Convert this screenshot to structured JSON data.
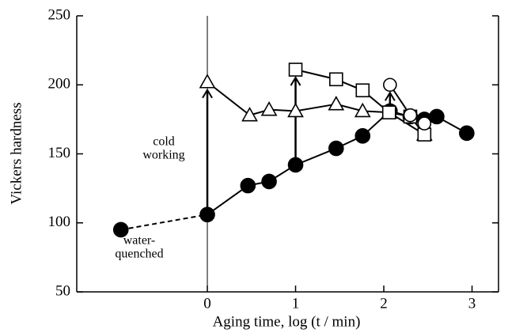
{
  "chart_data": {
    "type": "line",
    "xlabel": "Aging time, log (t / min)",
    "ylabel": "Vickers hardness",
    "xlim": [
      -1.48,
      3.3
    ],
    "ylim": [
      50,
      250
    ],
    "xticks": [
      0,
      1,
      2,
      3
    ],
    "yticks": [
      50,
      100,
      150,
      200,
      250
    ],
    "vlines": [
      0
    ],
    "series": [
      {
        "marker": "filled-circle",
        "color": "#000",
        "line_style": "dashed-first",
        "x": [
          -0.98,
          0,
          0.46,
          0.7,
          1.0,
          1.46,
          1.76,
          2.07,
          2.3,
          2.46,
          2.6,
          2.94
        ],
        "values": [
          95,
          106,
          127,
          130,
          142,
          154,
          163,
          181,
          177,
          175,
          177,
          165
        ]
      },
      {
        "marker": "triangle",
        "color": "#000",
        "line_style": "solid",
        "x": [
          0,
          0.48,
          0.7,
          1.0,
          1.46,
          1.76,
          2.06,
          2.46
        ],
        "values": [
          202,
          178,
          182,
          181,
          186,
          181,
          180,
          164
        ]
      },
      {
        "marker": "square",
        "color": "#000",
        "line_style": "solid",
        "x": [
          1.0,
          1.46,
          1.76,
          2.06,
          2.3,
          2.46
        ],
        "values": [
          211,
          204,
          196,
          180,
          177,
          164
        ]
      },
      {
        "marker": "open-circle",
        "color": "#000",
        "line_style": "solid",
        "x": [
          2.07,
          2.3,
          2.46
        ],
        "values": [
          200,
          178,
          172
        ]
      }
    ],
    "arrows": [
      {
        "x": 0,
        "from": 106,
        "to": 202
      },
      {
        "x": 1.0,
        "from": 142,
        "to": 211
      },
      {
        "x": 2.07,
        "from": 181,
        "to": 200
      }
    ],
    "annotations": [
      {
        "lines": [
          "cold",
          "working"
        ]
      },
      {
        "lines": [
          "water-",
          "quenched"
        ]
      }
    ]
  }
}
